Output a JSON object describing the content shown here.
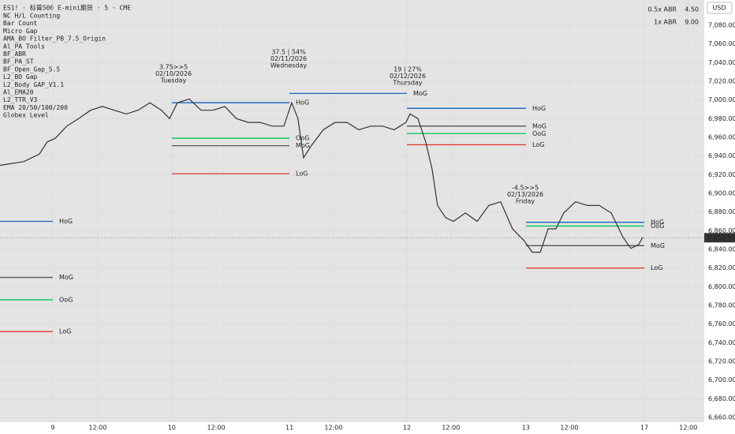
{
  "chart_data": {
    "type": "line",
    "title": "ES1! · 标普500 E-mini期货 · 5 · CME",
    "currency": "USD",
    "indicators": [
      "NC H/L Counting",
      "Bar Count",
      "Micro Gap",
      "AMA_BO Filter_PB_7.5_Origin",
      "Al_PA Tools",
      "BF_ABR",
      "BF_PA_ST",
      "BF_Open_Gap_5.5",
      "L2_BO Gap",
      "L2_Body GAP_V1.1",
      "Al_EMA20",
      "L2_TTR_V3",
      "EMA 20/50/100/200",
      "Globex Level"
    ],
    "abr": [
      {
        "name": "0.5x ABR",
        "value": "4.50"
      },
      {
        "name": "1x ABR",
        "value": "9.00"
      }
    ],
    "annotations": [
      {
        "lines": [
          "3.75>>5",
          "02/10/2026",
          "Tuesday"
        ],
        "color": "#43a047"
      },
      {
        "lines": [
          "37.5 | 54%",
          "02/11/2026",
          "Wednesday"
        ],
        "color": "#43a047"
      },
      {
        "lines": [
          "19 | 27%",
          "02/12/2026",
          "Thursday"
        ],
        "color": "#43a047"
      },
      {
        "lines": [
          "-4.5>>5",
          "02/13/2026",
          "Friday"
        ],
        "color": "#e53935"
      }
    ],
    "days": [
      {
        "levels": [
          {
            "label": "HoG",
            "value": 6870,
            "color": "#1565c0"
          },
          {
            "label": "MoG",
            "value": 6810,
            "color": "#555555"
          },
          {
            "label": "OoG",
            "value": 6786,
            "color": "#00c853"
          },
          {
            "label": "LoG",
            "value": 6752,
            "color": "#e53935"
          }
        ]
      },
      {
        "levels": [
          {
            "label": "HoG",
            "value": 6997,
            "color": "#1565c0"
          },
          {
            "label": "OoG",
            "value": 6959,
            "color": "#00c853"
          },
          {
            "label": "MoG",
            "value": 6951,
            "color": "#555555"
          },
          {
            "label": "LoG",
            "value": 6921,
            "color": "#e53935"
          }
        ]
      },
      {
        "levels": [
          {
            "label": "MoG",
            "value": 7007,
            "color": "#1565c0"
          }
        ]
      },
      {
        "levels": [
          {
            "label": "HoG",
            "value": 6991,
            "color": "#1565c0"
          },
          {
            "label": "MoG",
            "value": 6972,
            "color": "#555555"
          },
          {
            "label": "OoG",
            "value": 6964,
            "color": "#00c853"
          },
          {
            "label": "LoG",
            "value": 6952,
            "color": "#e53935"
          }
        ]
      },
      {
        "levels": [
          {
            "label": "HoG",
            "value": 6869,
            "color": "#1565c0"
          },
          {
            "label": "OoG",
            "value": 6865,
            "color": "#00c853"
          },
          {
            "label": "MoG",
            "value": 6844,
            "color": "#555555"
          },
          {
            "label": "LoG",
            "value": 6820,
            "color": "#e53935"
          }
        ]
      }
    ],
    "x": [
      -169,
      -93,
      -43,
      -18,
      8,
      45,
      83,
      121,
      159,
      197,
      235,
      273,
      311,
      348,
      374,
      399,
      437,
      475,
      513,
      551,
      588,
      626,
      664,
      702,
      740,
      765,
      785,
      803,
      828,
      866,
      904,
      942,
      980,
      1018,
      1056,
      1093,
      1131,
      1144,
      1169,
      1194,
      1215,
      1232,
      1258,
      1283,
      1321,
      1359,
      1396,
      1434,
      1472,
      1510,
      1535,
      1561,
      1586,
      1611,
      1636,
      1674,
      1712,
      1750,
      1788,
      1826,
      1851,
      1876,
      1889
    ],
    "values": [
      6930,
      6934,
      6942,
      6955,
      6959,
      6972,
      6980,
      6989,
      6993,
      6989,
      6985,
      6989,
      6997,
      6989,
      6980,
      6997,
      7001,
      6989,
      6989,
      6993,
      6980,
      6976,
      6976,
      6972,
      6972,
      6997,
      6980,
      6938,
      6951,
      6968,
      6976,
      6976,
      6968,
      6972,
      6972,
      6968,
      6976,
      6985,
      6980,
      6955,
      6925,
      6887,
      6874,
      6870,
      6879,
      6870,
      6887,
      6891,
      6862,
      6849,
      6837,
      6837,
      6862,
      6862,
      6879,
      6891,
      6887,
      6887,
      6879,
      6853,
      6841,
      6845,
      6853
    ],
    "color": "#333333",
    "last_price": {
      "value": 6852.5,
      "label": "6,852.50"
    },
    "xlim": [
      -169,
      2086
    ],
    "xticks": [
      {
        "value": 0,
        "label": "9"
      },
      {
        "value": 144,
        "label": "12:00"
      },
      {
        "value": 381,
        "label": "10"
      },
      {
        "value": 523,
        "label": "12:00"
      },
      {
        "value": 758,
        "label": "11"
      },
      {
        "value": 899,
        "label": "12:00"
      },
      {
        "value": 1134,
        "label": "12"
      },
      {
        "value": 1275,
        "label": "12:00"
      },
      {
        "value": 1515,
        "label": "13"
      },
      {
        "value": 1654,
        "label": "12:00"
      },
      {
        "value": 1894,
        "label": "17"
      },
      {
        "value": 2035,
        "label": "12:00"
      }
    ],
    "ylim": [
      6655,
      7107
    ],
    "yticks": [
      {
        "value": 6660,
        "label": "6,660.00"
      },
      {
        "value": 6680,
        "label": "6,680.00"
      },
      {
        "value": 6700,
        "label": "6,700.00"
      },
      {
        "value": 6720,
        "label": "6,720.00"
      },
      {
        "value": 6740,
        "label": "6,740.00"
      },
      {
        "value": 6760,
        "label": "6,760.00"
      },
      {
        "value": 6780,
        "label": "6,780.00"
      },
      {
        "value": 6800,
        "label": "6,800.00"
      },
      {
        "value": 6820,
        "label": "6,820.00"
      },
      {
        "value": 6840,
        "label": "6,840.00"
      },
      {
        "value": 6860,
        "label": "6,860.00"
      },
      {
        "value": 6880,
        "label": "6,880.00"
      },
      {
        "value": 6900,
        "label": "6,900.00"
      },
      {
        "value": 6920,
        "label": "6,920.00"
      },
      {
        "value": 6940,
        "label": "6,940.00"
      },
      {
        "value": 6960,
        "label": "6,960.00"
      },
      {
        "value": 6980,
        "label": "6,980.00"
      },
      {
        "value": 7000,
        "label": "7,000.00"
      },
      {
        "value": 7020,
        "label": "7,020.00"
      },
      {
        "value": 7040,
        "label": "7,040.00"
      },
      {
        "value": 7060,
        "label": "7,060.00"
      },
      {
        "value": 7080,
        "label": "7,080.00"
      }
    ],
    "grid": true
  }
}
